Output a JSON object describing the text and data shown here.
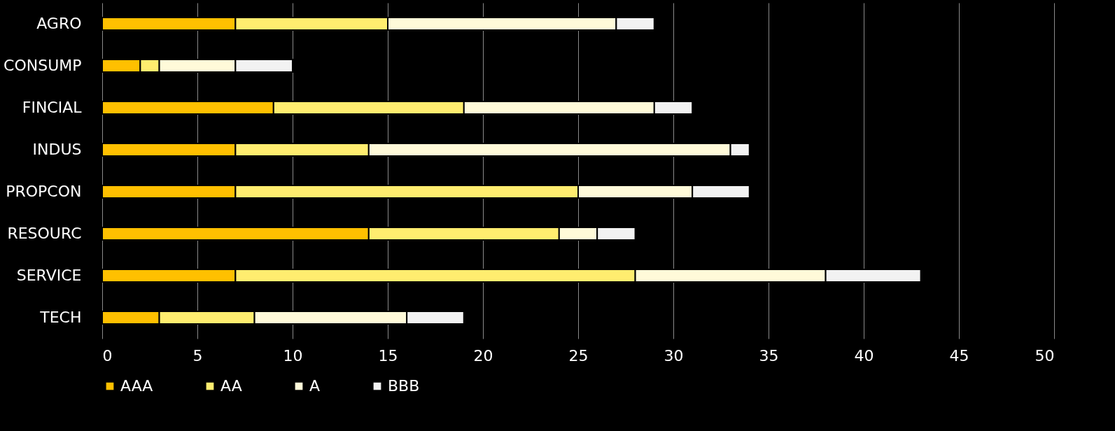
{
  "chart_data": {
    "type": "bar",
    "orientation": "horizontal",
    "stacked": true,
    "categories": [
      "AGRO",
      "CONSUMP",
      "FINCIAL",
      "INDUS",
      "PROPCON",
      "RESOURC",
      "SERVICE",
      "TECH"
    ],
    "series": [
      {
        "name": "AAA",
        "color": "#ffc000",
        "values": [
          7,
          2,
          9,
          7,
          7,
          14,
          7,
          3
        ]
      },
      {
        "name": "AA",
        "color": "#ffed6f",
        "values": [
          8,
          1,
          10,
          7,
          18,
          10,
          21,
          5
        ]
      },
      {
        "name": "A",
        "color": "#fffad9",
        "values": [
          12,
          4,
          10,
          19,
          6,
          2,
          10,
          8
        ]
      },
      {
        "name": "BBB",
        "color": "#f2f2f2",
        "values": [
          2,
          3,
          2,
          1,
          3,
          2,
          5,
          3
        ]
      }
    ],
    "xlim": [
      0,
      50
    ],
    "xticks": [
      0,
      5,
      10,
      15,
      20,
      25,
      30,
      35,
      40,
      45,
      50
    ],
    "grid": "x",
    "legend": "bottom"
  }
}
